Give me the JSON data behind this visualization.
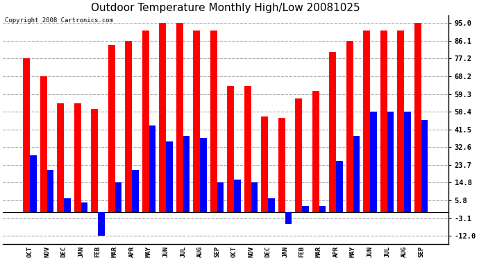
{
  "title": "Outdoor Temperature Monthly High/Low 20081025",
  "copyright": "Copyright 2008 Cartronics.com",
  "months": [
    "OCT",
    "NOV",
    "DEC",
    "JAN",
    "FEB",
    "MAR",
    "APR",
    "MAY",
    "JUN",
    "JUL",
    "AUG",
    "SEP",
    "OCT",
    "NOV",
    "DEC",
    "JAN",
    "FEB",
    "MAR",
    "APR",
    "MAY",
    "JUN",
    "JUL",
    "AUG",
    "SEP"
  ],
  "highs": [
    77.2,
    68.2,
    54.5,
    54.5,
    52.0,
    84.0,
    86.1,
    91.4,
    95.0,
    95.0,
    91.4,
    91.4,
    63.5,
    63.5,
    48.2,
    47.3,
    57.2,
    60.8,
    80.6,
    86.1,
    91.4,
    91.4,
    91.4,
    95.0
  ],
  "lows": [
    28.4,
    21.2,
    6.8,
    5.0,
    -12.0,
    14.8,
    21.2,
    43.7,
    35.6,
    38.3,
    37.4,
    14.8,
    16.2,
    14.8,
    6.8,
    -5.8,
    3.2,
    3.2,
    25.6,
    38.3,
    50.4,
    50.4,
    50.4,
    46.4
  ],
  "high_color": "#ff0000",
  "low_color": "#0000ff",
  "bg_color": "#ffffff",
  "plot_bg_color": "#ffffff",
  "grid_color": "#aaaaaa",
  "yticks": [
    95.0,
    86.1,
    77.2,
    68.2,
    59.3,
    50.4,
    41.5,
    32.6,
    23.7,
    14.8,
    5.8,
    -3.1,
    -12.0
  ],
  "ylim": [
    -16,
    99
  ],
  "bar_width": 0.4,
  "title_fontsize": 11,
  "figwidth": 6.9,
  "figheight": 3.75,
  "dpi": 100
}
